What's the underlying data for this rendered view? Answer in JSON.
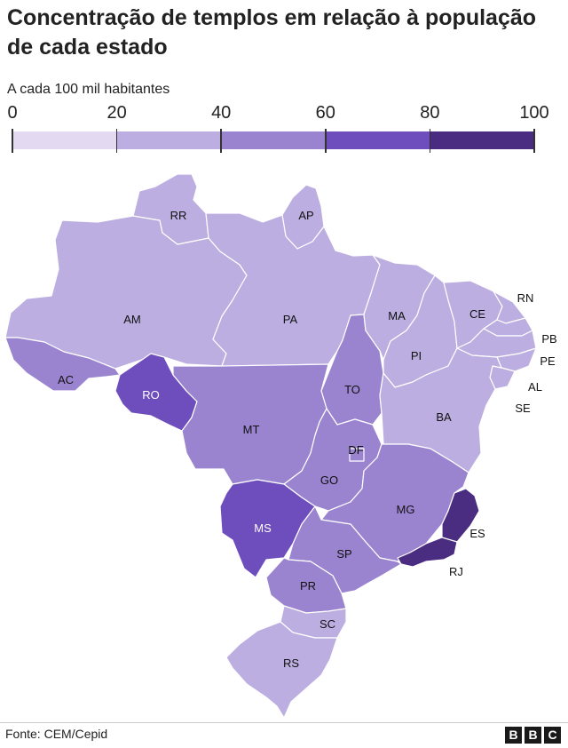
{
  "title": "Concentração de templos em relação à população de cada estado",
  "subtitle": "A cada 100 mil habitantes",
  "legend": {
    "ticks": [
      "0",
      "20",
      "40",
      "60",
      "80",
      "100"
    ],
    "bins": [
      {
        "from": 0,
        "to": 20,
        "color": "#e3d9f1"
      },
      {
        "from": 20,
        "to": 40,
        "color": "#bcaee0"
      },
      {
        "from": 40,
        "to": 60,
        "color": "#9a84d0"
      },
      {
        "from": 60,
        "to": 80,
        "color": "#6e4dbd"
      },
      {
        "from": 80,
        "to": 100,
        "color": "#4a2c80"
      }
    ]
  },
  "states": {
    "RR": {
      "label": "RR",
      "color": "#bcaee0",
      "bin": "20-40"
    },
    "AP": {
      "label": "AP",
      "color": "#bcaee0",
      "bin": "20-40"
    },
    "AM": {
      "label": "AM",
      "color": "#bcaee0",
      "bin": "20-40"
    },
    "PA": {
      "label": "PA",
      "color": "#bcaee0",
      "bin": "20-40"
    },
    "MA": {
      "label": "MA",
      "color": "#bcaee0",
      "bin": "20-40"
    },
    "CE": {
      "label": "CE",
      "color": "#bcaee0",
      "bin": "20-40"
    },
    "RN": {
      "label": "RN",
      "color": "#bcaee0",
      "bin": "20-40"
    },
    "PB": {
      "label": "PB",
      "color": "#bcaee0",
      "bin": "20-40"
    },
    "PE": {
      "label": "PE",
      "color": "#bcaee0",
      "bin": "20-40"
    },
    "AL": {
      "label": "AL",
      "color": "#bcaee0",
      "bin": "20-40"
    },
    "SE": {
      "label": "SE",
      "color": "#bcaee0",
      "bin": "20-40"
    },
    "PI": {
      "label": "PI",
      "color": "#bcaee0",
      "bin": "20-40"
    },
    "AC": {
      "label": "AC",
      "color": "#9a84d0",
      "bin": "40-60"
    },
    "RO": {
      "label": "RO",
      "color": "#6e4dbd",
      "bin": "60-80"
    },
    "TO": {
      "label": "TO",
      "color": "#9a84d0",
      "bin": "40-60"
    },
    "BA": {
      "label": "BA",
      "color": "#bcaee0",
      "bin": "20-40"
    },
    "MT": {
      "label": "MT",
      "color": "#9a84d0",
      "bin": "40-60"
    },
    "DF": {
      "label": "DF",
      "color": "#9a84d0",
      "bin": "40-60"
    },
    "GO": {
      "label": "GO",
      "color": "#9a84d0",
      "bin": "40-60"
    },
    "MG": {
      "label": "MG",
      "color": "#9a84d0",
      "bin": "40-60"
    },
    "ES": {
      "label": "ES",
      "color": "#4a2c80",
      "bin": "80-100"
    },
    "RJ": {
      "label": "RJ",
      "color": "#4a2c80",
      "bin": "80-100"
    },
    "MS": {
      "label": "MS",
      "color": "#6e4dbd",
      "bin": "60-80"
    },
    "SP": {
      "label": "SP",
      "color": "#9a84d0",
      "bin": "40-60"
    },
    "PR": {
      "label": "PR",
      "color": "#9a84d0",
      "bin": "40-60"
    },
    "SC": {
      "label": "SC",
      "color": "#bcaee0",
      "bin": "20-40"
    },
    "RS": {
      "label": "RS",
      "color": "#bcaee0",
      "bin": "20-40"
    }
  },
  "footer": {
    "source": "Fonte: CEM/Cepid",
    "logo_letters": [
      "B",
      "B",
      "C"
    ]
  }
}
